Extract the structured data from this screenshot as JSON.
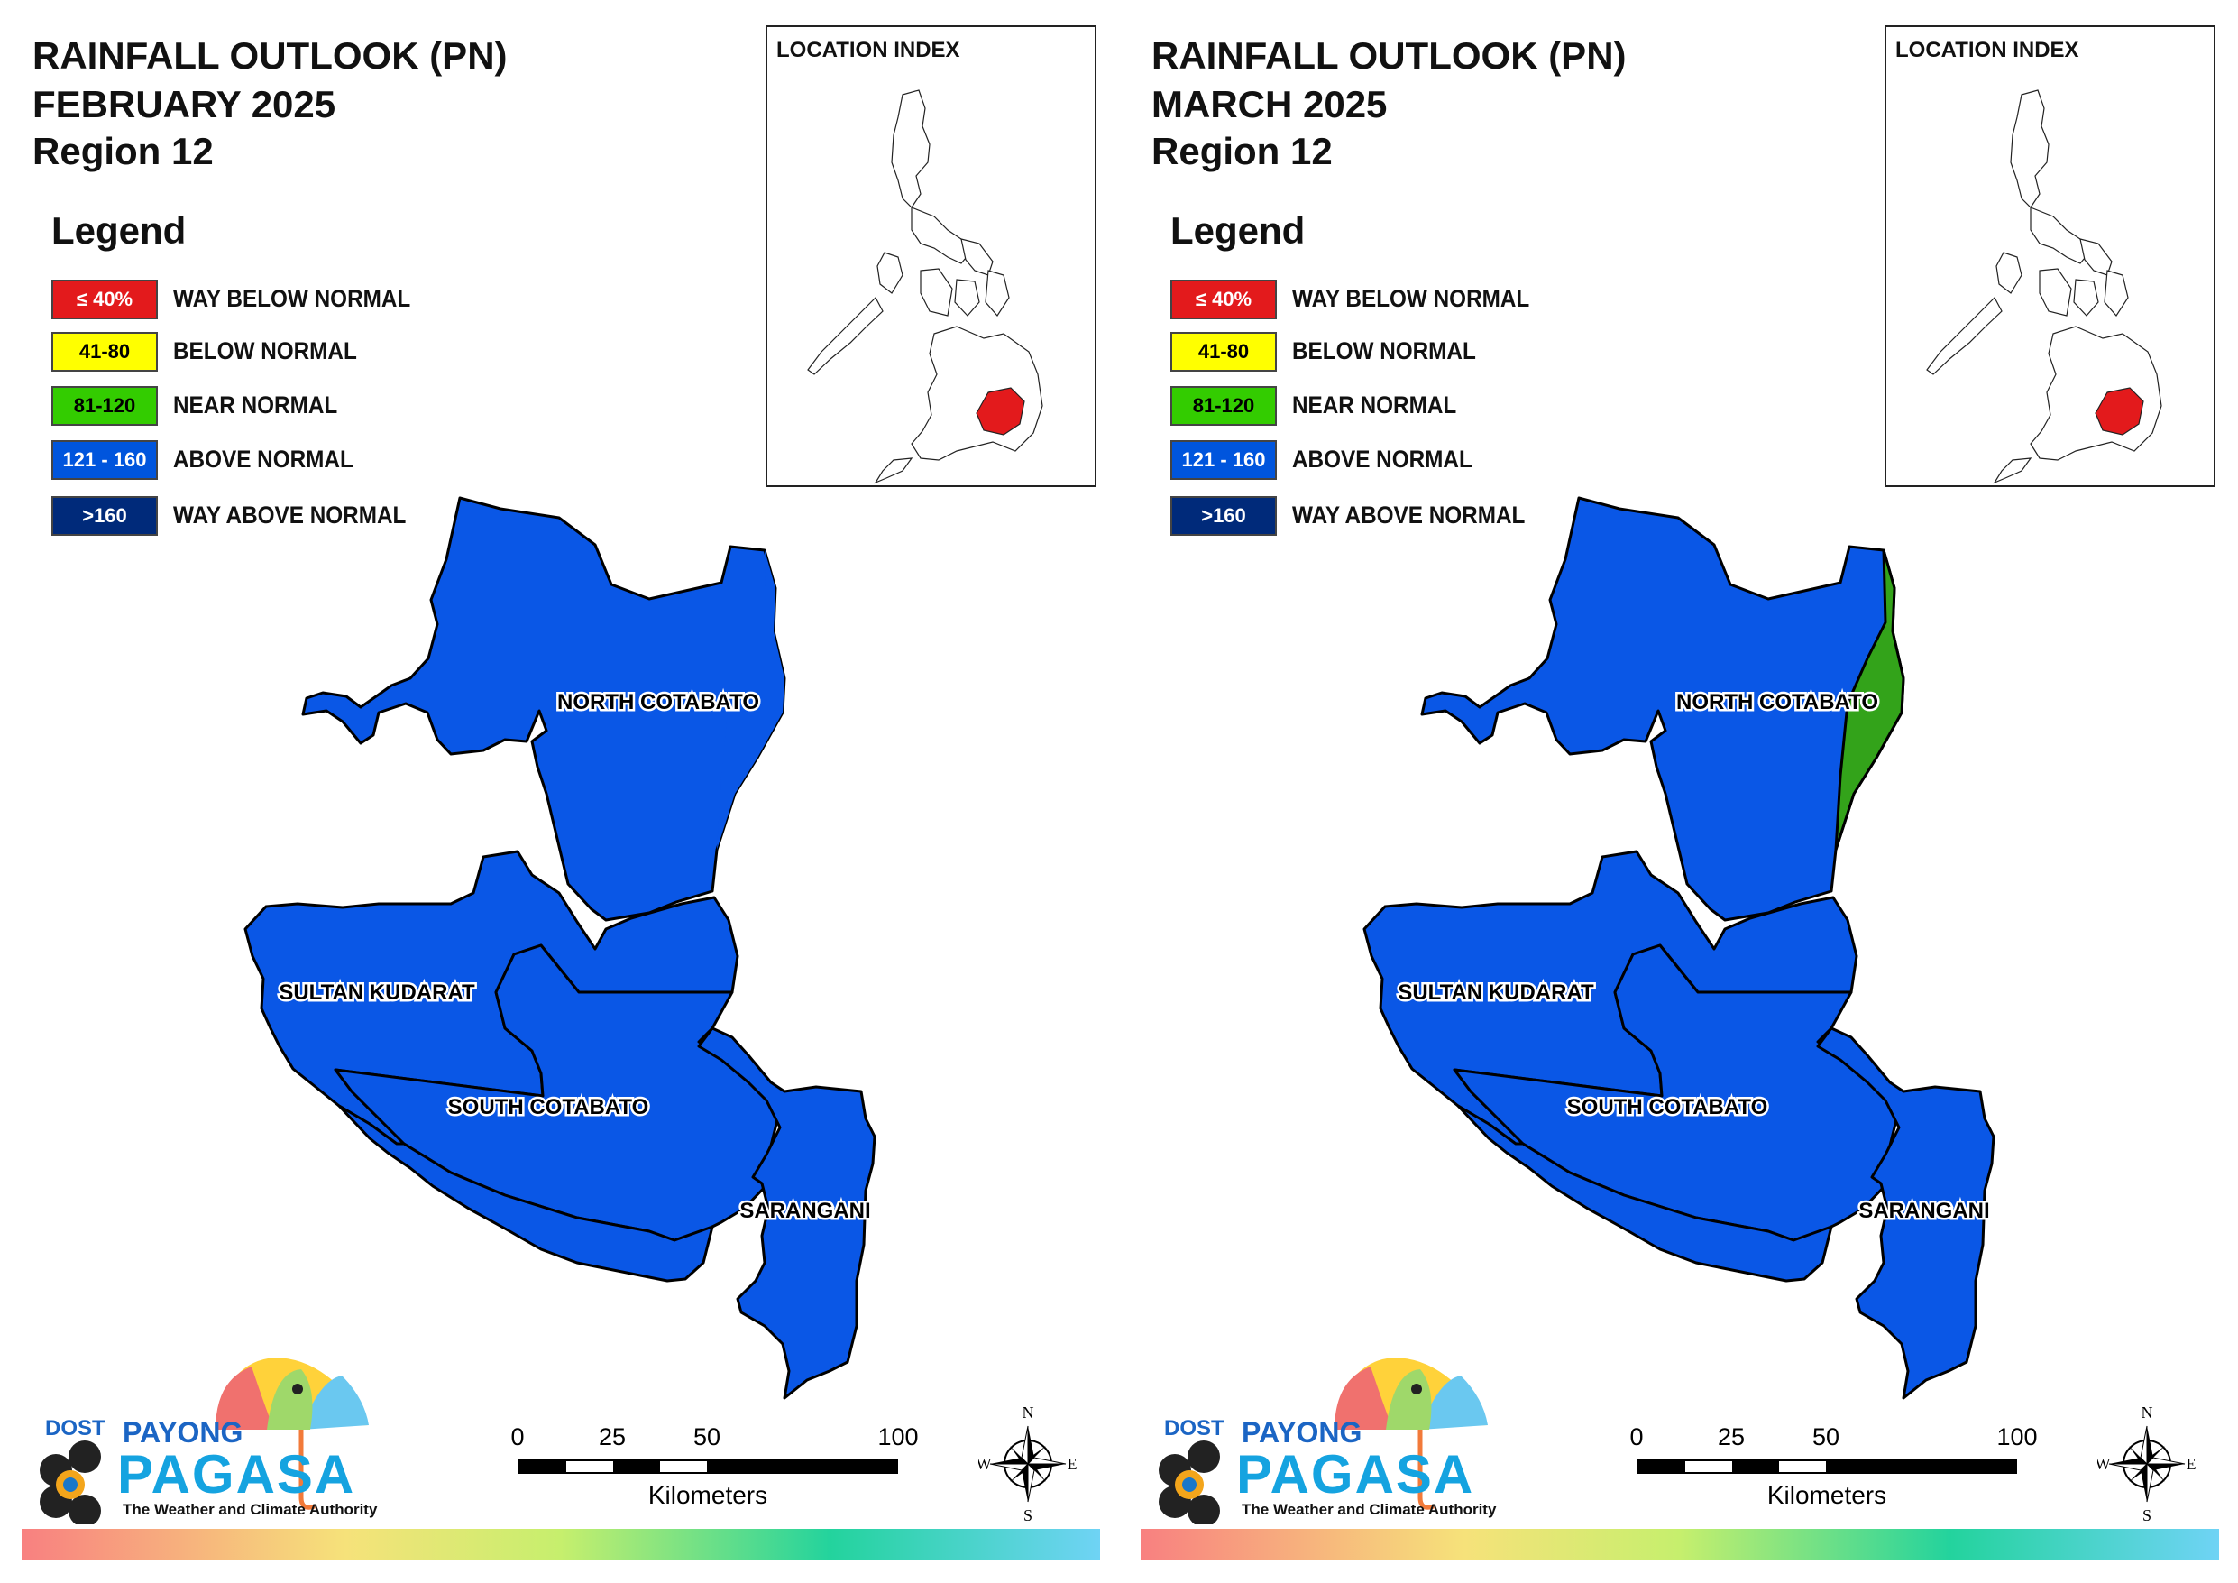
{
  "panels": [
    {
      "title_line1": "RAINFALL OUTLOOK (PN)",
      "title_line2": "FEBRUARY 2025",
      "title_line3": "Region 12",
      "north_cotabato_east_category": "ABOVE NORMAL"
    },
    {
      "title_line1": "RAINFALL OUTLOOK (PN)",
      "title_line2": "MARCH 2025",
      "title_line3": "Region 12",
      "north_cotabato_east_category": "NEAR NORMAL"
    }
  ],
  "legend": {
    "title": "Legend",
    "items": [
      {
        "range": "≤ 40%",
        "label": "WAY BELOW NORMAL",
        "color": "#e31a1c",
        "text_color": "#ffffff"
      },
      {
        "range": "41-80",
        "label": "BELOW NORMAL",
        "color": "#ffff00",
        "text_color": "#000000"
      },
      {
        "range": "81-120",
        "label": "NEAR NORMAL",
        "color": "#33cc00",
        "text_color": "#000000"
      },
      {
        "range": "121 - 160",
        "label": "ABOVE NORMAL",
        "color": "#0055dd",
        "text_color": "#ffffff"
      },
      {
        "range": ">160",
        "label": "WAY ABOVE NORMAL",
        "color": "#002a7a",
        "text_color": "#ffffff"
      }
    ]
  },
  "inset": {
    "title": "LOCATION INDEX",
    "highlight_color": "#e31a1c"
  },
  "provinces": {
    "north": "NORTH COTABATO",
    "sultan": "SULTAN KUDARAT",
    "south": "SOUTH COTABATO",
    "sarangani": "SARANGANI"
  },
  "colors": {
    "above_normal": "#0a57e6",
    "near_normal": "#33a31a"
  },
  "scale": {
    "ticks": [
      "0",
      "25",
      "50",
      "100"
    ],
    "unit": "Kilometers"
  },
  "compass": {
    "n": "N",
    "s": "S",
    "e": "E",
    "w": "W"
  },
  "logo": {
    "dost": "DOST",
    "payong": "PAYONG",
    "pagasa": "PAGASA",
    "tagline": "The Weather and Climate Authority"
  }
}
